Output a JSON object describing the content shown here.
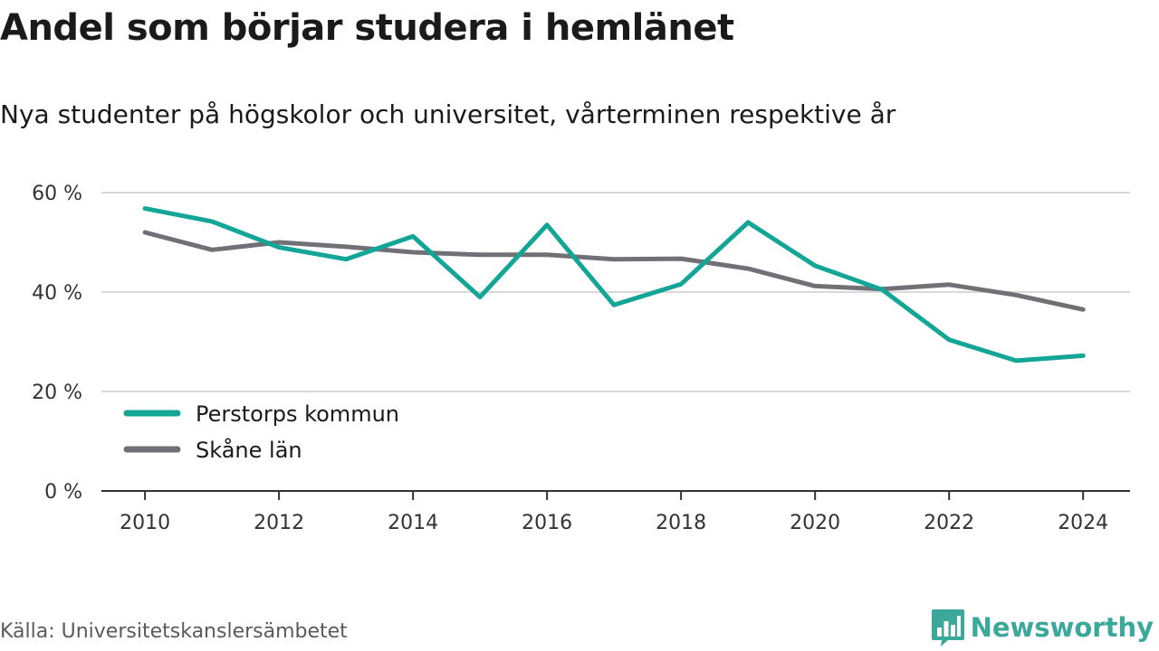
{
  "title": "Andel som börjar studera i hemlänet",
  "subtitle": "Nya studenter på högskolor och universitet, vårterminen respektive år",
  "source": "Källa: Universitetskanslersämbetet",
  "brand": {
    "name": "Newsworthy",
    "icon": "bar-chart-icon",
    "color": "#3aa89a"
  },
  "chart_data": {
    "type": "line",
    "x": [
      2010,
      2011,
      2012,
      2013,
      2014,
      2015,
      2016,
      2017,
      2018,
      2019,
      2020,
      2021,
      2022,
      2023,
      2024
    ],
    "series": [
      {
        "name": "Perstorps kommun",
        "color": "#13a596",
        "values": [
          56.8,
          54.2,
          49.0,
          46.6,
          51.2,
          39.0,
          53.5,
          37.4,
          41.6,
          54.0,
          45.3,
          40.5,
          30.4,
          26.2,
          27.2
        ]
      },
      {
        "name": "Skåne län",
        "color": "#707076",
        "values": [
          52.0,
          48.5,
          50.0,
          49.1,
          48.0,
          47.5,
          47.5,
          46.6,
          46.7,
          44.7,
          41.2,
          40.6,
          41.5,
          39.4,
          36.5
        ]
      }
    ],
    "ylim": [
      0,
      60
    ],
    "yticks": [
      0,
      20,
      40,
      60
    ],
    "ytick_labels": [
      "0 %",
      "20 %",
      "40 %",
      "60 %"
    ],
    "xticks": [
      2010,
      2012,
      2014,
      2016,
      2018,
      2020,
      2022,
      2024
    ],
    "xtick_labels": [
      "2010",
      "2012",
      "2014",
      "2016",
      "2018",
      "2020",
      "2022",
      "2024"
    ],
    "xlim": [
      2009.35,
      2024.7
    ],
    "grid": true,
    "legend": "lower-left"
  }
}
